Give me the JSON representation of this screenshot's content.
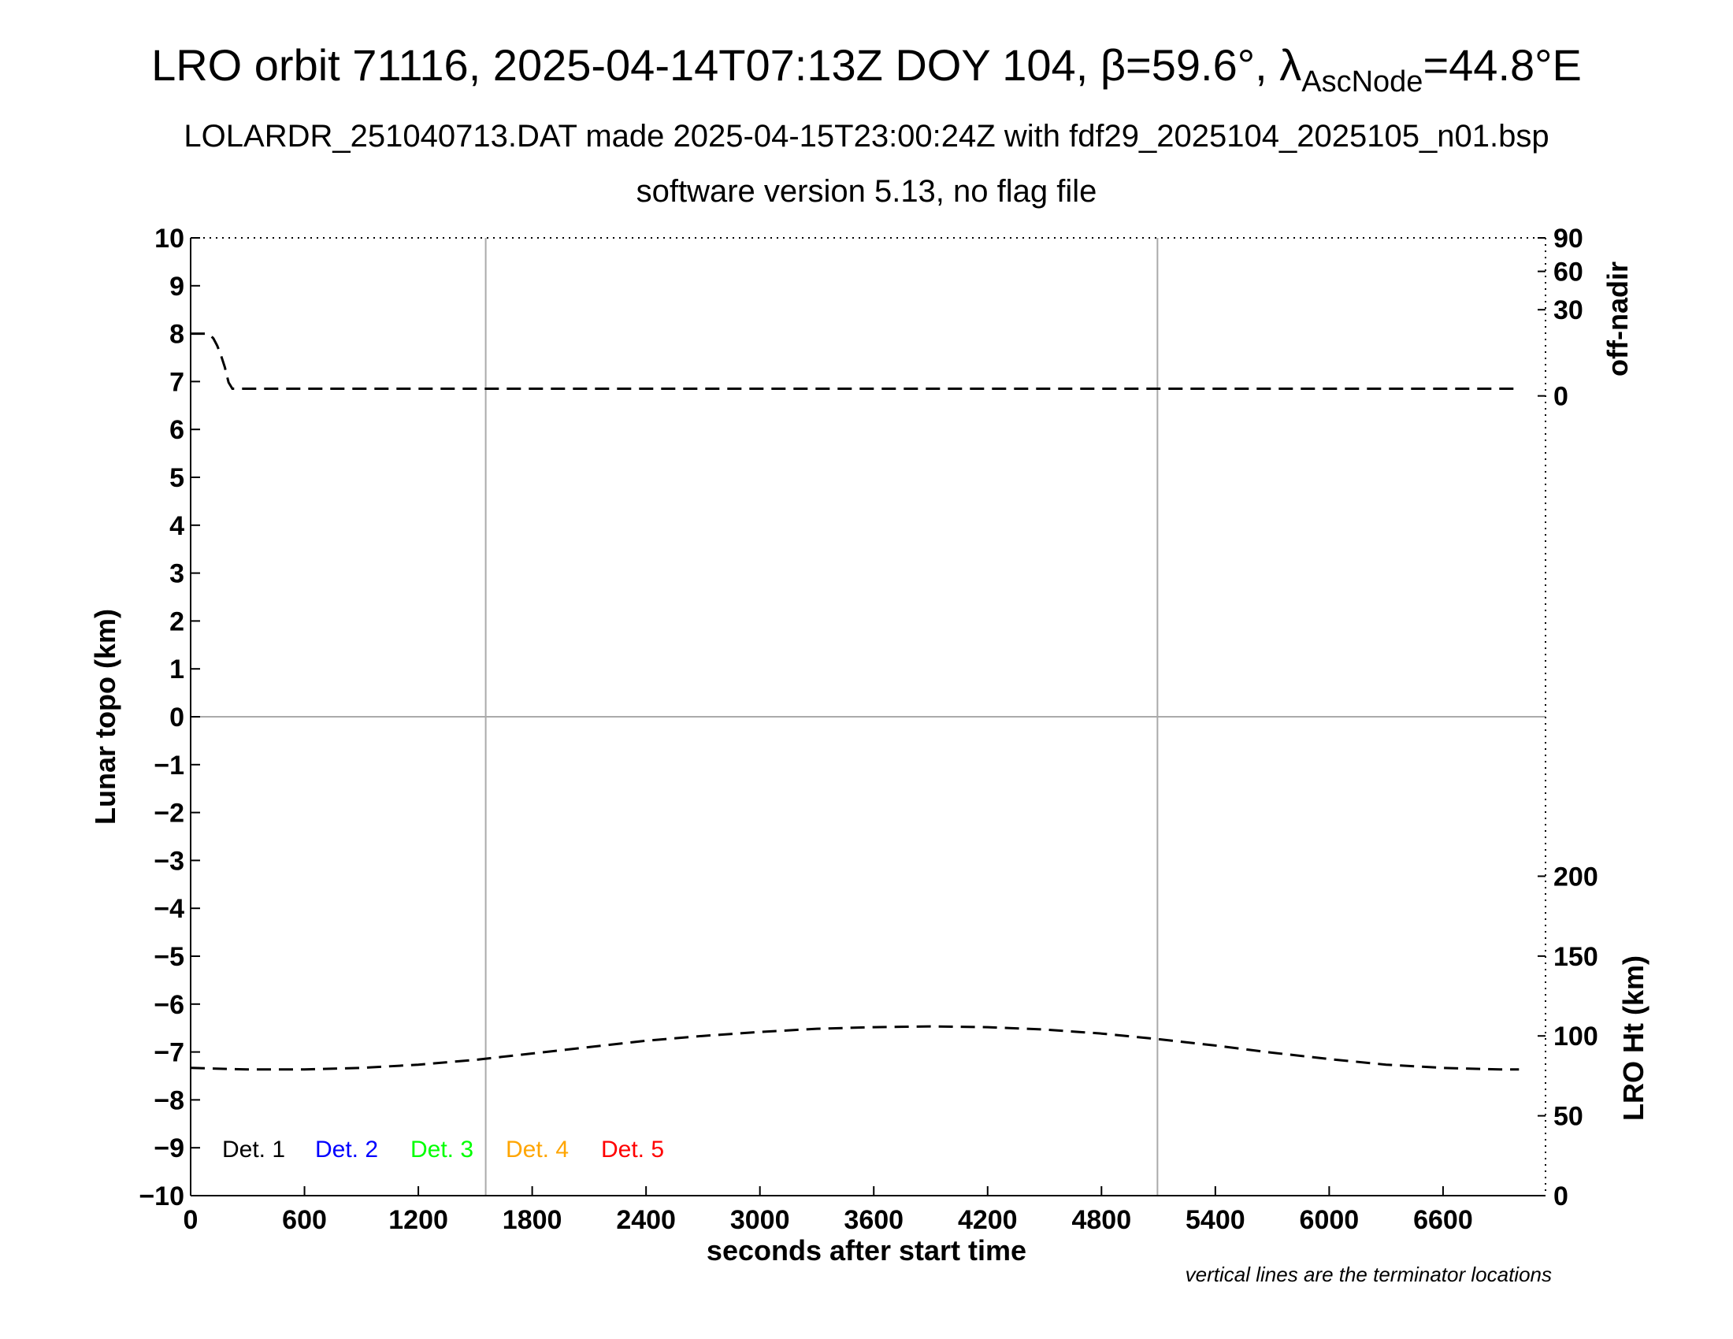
{
  "header": {
    "title_main": "LRO orbit 71116, 2025-04-14T07:13Z DOY 104, ",
    "title_beta": "β=59.6°, ",
    "title_lambda": "λ",
    "title_sub": "AscNode",
    "title_tail": "=44.8°E",
    "line2": "LOLARDR_251040713.DAT made 2025-04-15T23:00:24Z with fdf29_2025104_2025105_n01.bsp",
    "line3": "software version 5.13, no flag file"
  },
  "footnote": "vertical lines are the terminator locations",
  "legend": [
    {
      "label": "Det. 1",
      "color": "#000000"
    },
    {
      "label": "Det. 2",
      "color": "#0000ff"
    },
    {
      "label": "Det. 3",
      "color": "#00ff00"
    },
    {
      "label": "Det. 4",
      "color": "#ffa500"
    },
    {
      "label": "Det. 5",
      "color": "#ff0000"
    }
  ],
  "chart_data": {
    "type": "line",
    "xlabel": "seconds after start time",
    "ylabel": "Lunar topo (km)",
    "xlim": [
      0,
      7140
    ],
    "xticks": [
      0,
      600,
      1200,
      1800,
      2400,
      3000,
      3600,
      4200,
      4800,
      5400,
      6000,
      6600
    ],
    "ylim": [
      -10,
      10
    ],
    "yticks": [
      10,
      9,
      8,
      7,
      6,
      5,
      4,
      3,
      2,
      1,
      0,
      -1,
      -2,
      -3,
      -4,
      -5,
      -6,
      -7,
      -8,
      -9,
      -10
    ],
    "ytick_labels": [
      "10",
      "9",
      "8",
      "7",
      "6",
      "5",
      "4",
      "3",
      "2",
      "1",
      "0",
      "−1",
      "−2",
      "−3",
      "−4",
      "−5",
      "−6",
      "−7",
      "−8",
      "−9",
      "−10"
    ],
    "terminator_lines_x": [
      1555,
      5095
    ],
    "zero_line": true,
    "right_axis_top": {
      "label": "off-nadir",
      "ticks": [
        90,
        60,
        30,
        0
      ],
      "ticks_at_left_y": [
        10,
        9.3,
        8.5,
        6.7
      ]
    },
    "right_axis_bottom": {
      "label": "LRO Ht (km)",
      "range": [
        0,
        200
      ],
      "ticks": [
        200,
        150,
        100,
        50,
        0
      ],
      "left_y_range": [
        -10,
        -3.33
      ]
    },
    "series": [
      {
        "name": "off-nadir",
        "axis": "off-nadir",
        "style": "dashed",
        "x": [
          0,
          80,
          100,
          120,
          140,
          160,
          180,
          200,
          220,
          7000
        ],
        "y_left_units": [
          8.0,
          8.0,
          7.98,
          7.9,
          7.75,
          7.55,
          7.3,
          6.98,
          6.85,
          6.85
        ]
      },
      {
        "name": "LRO Ht",
        "axis": "LRO Ht (km)",
        "style": "dashed",
        "x": [
          0,
          300,
          600,
          900,
          1200,
          1500,
          1800,
          2100,
          2400,
          2700,
          3000,
          3300,
          3600,
          3900,
          4200,
          4500,
          4800,
          5100,
          5400,
          5700,
          6000,
          6300,
          6600,
          6900,
          7000
        ],
        "values": [
          80,
          79,
          79,
          80,
          82,
          85,
          89,
          93,
          97,
          100,
          102.5,
          104.5,
          105.5,
          106,
          105.5,
          104,
          101.5,
          98,
          94,
          89.5,
          85.5,
          82,
          80,
          79,
          79
        ]
      }
    ]
  }
}
